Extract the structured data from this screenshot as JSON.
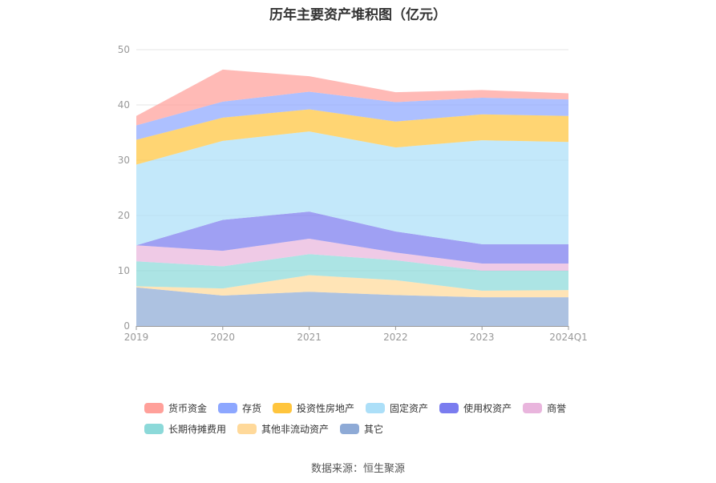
{
  "title": "历年主要资产堆积图（亿元）",
  "source": "数据来源：恒生聚源",
  "chart_data": {
    "type": "area",
    "stacked": true,
    "categories": [
      "2019",
      "2020",
      "2021",
      "2022",
      "2023",
      "2024Q1"
    ],
    "ylim": [
      0,
      50
    ],
    "yticks": [
      0,
      10,
      20,
      30,
      40,
      50
    ],
    "grid": true,
    "legend_position": "bottom",
    "series": [
      {
        "name": "其它",
        "color": "#8eaad6",
        "values": [
          7.0,
          5.5,
          6.2,
          5.6,
          5.2,
          5.2
        ]
      },
      {
        "name": "其他非流动资产",
        "color": "#ffd99a",
        "values": [
          0.2,
          1.3,
          3.0,
          2.7,
          1.2,
          1.3
        ]
      },
      {
        "name": "长期待摊费用",
        "color": "#8cd9d9",
        "values": [
          4.5,
          4.0,
          3.8,
          3.6,
          3.6,
          3.5
        ]
      },
      {
        "name": "商誉",
        "color": "#e9b5dd",
        "values": [
          2.9,
          2.8,
          2.8,
          1.4,
          1.3,
          1.3
        ]
      },
      {
        "name": "使用权资产",
        "color": "#7a7cef",
        "values": [
          0.0,
          5.6,
          4.9,
          3.8,
          3.5,
          3.5
        ]
      },
      {
        "name": "固定资产",
        "color": "#acdff8",
        "values": [
          14.6,
          14.3,
          14.5,
          15.2,
          18.8,
          18.5
        ]
      },
      {
        "name": "投资性房地产",
        "color": "#ffc53d",
        "values": [
          4.5,
          4.2,
          4.0,
          4.7,
          4.7,
          4.7
        ]
      },
      {
        "name": "存货",
        "color": "#8da7ff",
        "values": [
          2.6,
          2.9,
          3.2,
          3.5,
          3.0,
          3.0
        ]
      },
      {
        "name": "货币资金",
        "color": "#ffa09a",
        "values": [
          1.7,
          5.8,
          2.8,
          1.8,
          1.4,
          1.1
        ]
      }
    ]
  },
  "legend": {
    "rows": [
      [
        {
          "label": "货币资金",
          "color": "#ffa09a"
        },
        {
          "label": "存货",
          "color": "#8da7ff"
        },
        {
          "label": "投资性房地产",
          "color": "#ffc53d"
        },
        {
          "label": "固定资产",
          "color": "#acdff8"
        },
        {
          "label": "使用权资产",
          "color": "#7a7cef"
        },
        {
          "label": "商誉",
          "color": "#e9b5dd"
        }
      ],
      [
        {
          "label": "长期待摊费用",
          "color": "#8cd9d9"
        },
        {
          "label": "其他非流动资产",
          "color": "#ffd99a"
        },
        {
          "label": "其它",
          "color": "#8eaad6"
        }
      ]
    ]
  }
}
